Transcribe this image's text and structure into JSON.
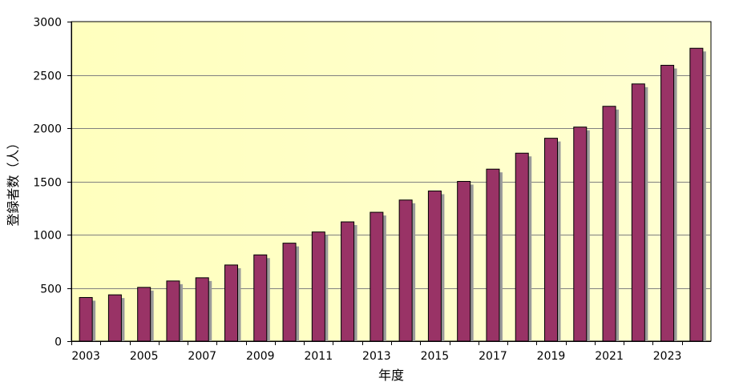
{
  "chart_data": {
    "type": "bar",
    "xlabel": "年度",
    "ylabel": "登録者数（人）",
    "categories": [
      "2003",
      "2004",
      "2005",
      "2006",
      "2007",
      "2008",
      "2009",
      "2010",
      "2011",
      "2012",
      "2013",
      "2014",
      "2015",
      "2016",
      "2017",
      "2018",
      "2019",
      "2020",
      "2021",
      "2022",
      "2023",
      "2024"
    ],
    "x_tick_labels": [
      "2003",
      "2005",
      "2007",
      "2009",
      "2011",
      "2013",
      "2015",
      "2017",
      "2019",
      "2021",
      "2023"
    ],
    "values": [
      410,
      435,
      505,
      565,
      595,
      715,
      810,
      920,
      1025,
      1120,
      1210,
      1325,
      1410,
      1500,
      1615,
      1765,
      1905,
      2010,
      2205,
      2415,
      2590,
      2750
    ],
    "ylim": [
      0,
      3000
    ],
    "y_ticks": [
      0,
      500,
      1000,
      1500,
      2000,
      2500,
      3000
    ],
    "grid": true,
    "legend": "none",
    "colors": {
      "plot_background": "#ffffc4",
      "bar_fill": "#993366",
      "bar_shadow": "#9a9a9a",
      "gridline": "#808080",
      "axis": "#000000"
    }
  }
}
